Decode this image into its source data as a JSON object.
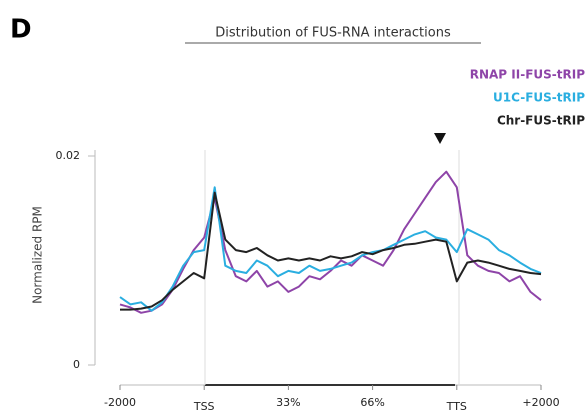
{
  "panel_label": "D",
  "chart_data": {
    "type": "line",
    "title": "Distribution of FUS-RNA interactions",
    "y_label": "Normalized RPM",
    "categories": [
      "-2000",
      null,
      null,
      null,
      null,
      null,
      null,
      null,
      "TSS",
      null,
      null,
      null,
      null,
      null,
      null,
      null,
      "33%",
      null,
      null,
      null,
      null,
      null,
      null,
      null,
      "66%",
      null,
      null,
      null,
      null,
      null,
      null,
      null,
      "TTS",
      null,
      null,
      null,
      null,
      null,
      null,
      null,
      "+2000"
    ],
    "ylim": [
      0,
      0.02
    ],
    "yticks": [
      0,
      0.02
    ],
    "series": [
      {
        "name": "RNAP II-FUS-tRIP",
        "color": "#8e44a8",
        "values": [
          0.0058,
          0.0055,
          0.005,
          0.0052,
          0.0058,
          0.0072,
          0.0092,
          0.011,
          0.0122,
          0.016,
          0.011,
          0.0085,
          0.008,
          0.009,
          0.0075,
          0.008,
          0.007,
          0.0075,
          0.0085,
          0.0082,
          0.009,
          0.01,
          0.0095,
          0.0105,
          0.01,
          0.0095,
          0.011,
          0.013,
          0.0145,
          0.016,
          0.0175,
          0.0185,
          0.017,
          0.0105,
          0.0095,
          0.009,
          0.0088,
          0.008,
          0.0085,
          0.007,
          0.0062
        ]
      },
      {
        "name": "U1C-FUS-tRIP",
        "color": "#2aaee0",
        "values": [
          0.0065,
          0.0058,
          0.006,
          0.0052,
          0.006,
          0.0075,
          0.0095,
          0.0108,
          0.011,
          0.017,
          0.0095,
          0.009,
          0.0088,
          0.01,
          0.0095,
          0.0085,
          0.009,
          0.0088,
          0.0095,
          0.009,
          0.0092,
          0.0095,
          0.0098,
          0.0105,
          0.0108,
          0.011,
          0.0115,
          0.012,
          0.0125,
          0.0128,
          0.0122,
          0.012,
          0.0108,
          0.013,
          0.0125,
          0.012,
          0.011,
          0.0105,
          0.0098,
          0.0092,
          0.0088
        ]
      },
      {
        "name": "Chr-FUS-tRIP",
        "color": "#222222",
        "values": [
          0.0053,
          0.0053,
          0.0054,
          0.0056,
          0.0062,
          0.0072,
          0.008,
          0.0088,
          0.0083,
          0.0165,
          0.012,
          0.011,
          0.0108,
          0.0112,
          0.0105,
          0.01,
          0.0102,
          0.01,
          0.0102,
          0.01,
          0.0104,
          0.0102,
          0.0104,
          0.0108,
          0.0106,
          0.011,
          0.0112,
          0.0115,
          0.0116,
          0.0118,
          0.012,
          0.0118,
          0.008,
          0.0098,
          0.01,
          0.0098,
          0.0095,
          0.0092,
          0.009,
          0.0088,
          0.0087
        ]
      }
    ]
  }
}
